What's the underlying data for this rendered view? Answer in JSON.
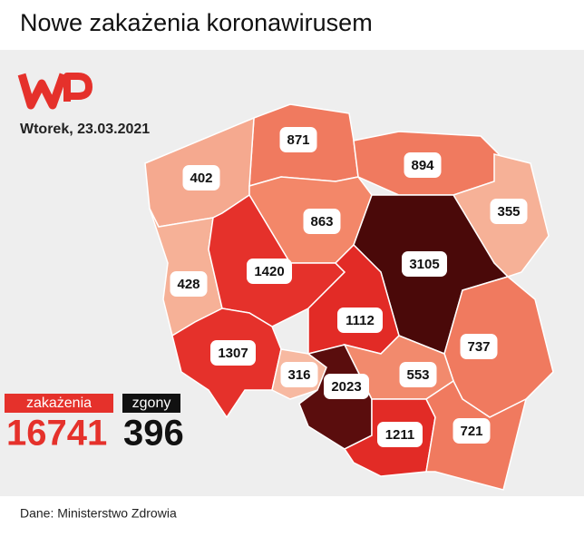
{
  "header": {
    "title": "Nowe zakażenia koronawirusem",
    "date": "Wtorek, 23.03.2021"
  },
  "regions": [
    {
      "value": 871,
      "color": "#f07a5f"
    },
    {
      "value": 894,
      "color": "#f07a5f"
    },
    {
      "value": 402,
      "color": "#f5a98f"
    },
    {
      "value": 863,
      "color": "#f38769"
    },
    {
      "value": 355,
      "color": "#f6b197"
    },
    {
      "value": 3105,
      "color": "#4a0909"
    },
    {
      "value": 428,
      "color": "#f6b197"
    },
    {
      "value": 1420,
      "color": "#e5312b"
    },
    {
      "value": 1112,
      "color": "#e22b26"
    },
    {
      "value": 737,
      "color": "#f07a5f"
    },
    {
      "value": 1307,
      "color": "#e5312b"
    },
    {
      "value": 316,
      "color": "#f7b9a1"
    },
    {
      "value": 2023,
      "color": "#5a0d0d"
    },
    {
      "value": 553,
      "color": "#f28a6d"
    },
    {
      "value": 1211,
      "color": "#e22b26"
    },
    {
      "value": 721,
      "color": "#f07a5f"
    }
  ],
  "totals": {
    "cases_label": "zakażenia",
    "cases": 16741,
    "deaths_label": "zgony",
    "deaths": 396
  },
  "footer": {
    "source": "Dane: Ministerstwo Zdrowia"
  }
}
